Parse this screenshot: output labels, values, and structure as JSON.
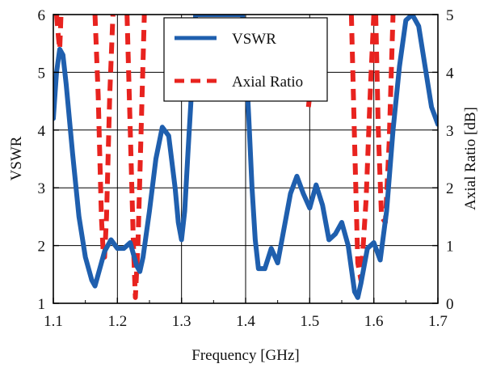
{
  "chart_data": {
    "type": "line",
    "xlabel": "Frequency [GHz]",
    "ylabel": "VSWR",
    "y2label": "Axial Ratio [dB]",
    "xlim": [
      1.1,
      1.7
    ],
    "ylim": [
      1,
      6
    ],
    "y2lim": [
      0,
      5
    ],
    "x_ticks": [
      "1.1",
      "1.2",
      "1.3",
      "1.4",
      "1.5",
      "1.6",
      "1.7"
    ],
    "y_ticks": [
      "1",
      "2",
      "3",
      "4",
      "5",
      "6"
    ],
    "y2_ticks": [
      "0",
      "1",
      "2",
      "3",
      "4",
      "5"
    ],
    "grid": true,
    "legend_position": "top-center",
    "series": [
      {
        "name": "VSWR",
        "axis": "left",
        "color": "#1f5fae",
        "style": "solid",
        "x": [
          1.1,
          1.105,
          1.11,
          1.115,
          1.12,
          1.13,
          1.14,
          1.15,
          1.16,
          1.165,
          1.17,
          1.18,
          1.19,
          1.2,
          1.21,
          1.22,
          1.23,
          1.235,
          1.24,
          1.25,
          1.26,
          1.27,
          1.28,
          1.29,
          1.295,
          1.3,
          1.305,
          1.31,
          1.32,
          1.322,
          1.395,
          1.4,
          1.405,
          1.41,
          1.415,
          1.42,
          1.43,
          1.44,
          1.45,
          1.46,
          1.47,
          1.48,
          1.49,
          1.5,
          1.51,
          1.52,
          1.53,
          1.54,
          1.55,
          1.56,
          1.565,
          1.57,
          1.575,
          1.58,
          1.59,
          1.6,
          1.61,
          1.62,
          1.63,
          1.64,
          1.65,
          1.66,
          1.67,
          1.68,
          1.69,
          1.7
        ],
        "y": [
          4.2,
          5.0,
          5.4,
          5.3,
          4.8,
          3.6,
          2.5,
          1.8,
          1.4,
          1.3,
          1.5,
          1.9,
          2.1,
          1.95,
          1.95,
          2.05,
          1.65,
          1.55,
          1.8,
          2.6,
          3.5,
          4.05,
          3.9,
          3.0,
          2.4,
          2.1,
          2.6,
          3.6,
          5.5,
          6.0,
          6.0,
          5.3,
          4.2,
          3.0,
          2.1,
          1.6,
          1.6,
          1.95,
          1.7,
          2.3,
          2.9,
          3.2,
          2.9,
          2.65,
          3.05,
          2.7,
          2.1,
          2.2,
          2.4,
          2.0,
          1.6,
          1.2,
          1.1,
          1.35,
          1.95,
          2.05,
          1.75,
          2.6,
          4.0,
          5.1,
          5.9,
          6.0,
          5.8,
          5.1,
          4.4,
          4.1
        ]
      },
      {
        "name": "Axial Ratio",
        "axis": "right",
        "color": "#e8231f",
        "style": "dashed",
        "segments": [
          {
            "x": [
              1.105,
              1.108,
              1.11,
              1.112
            ],
            "y": [
              5.0,
              4.6,
              4.4,
              5.0
            ]
          },
          {
            "x": [
              1.165,
              1.17,
              1.175,
              1.178,
              1.18,
              1.183,
              1.188,
              1.193
            ],
            "y": [
              5.0,
              3.6,
              1.5,
              0.85,
              0.8,
              1.5,
              3.6,
              5.0
            ]
          },
          {
            "x": [
              1.215,
              1.22,
              1.225,
              1.228,
              1.232,
              1.237,
              1.242
            ],
            "y": [
              5.0,
              3.0,
              1.0,
              0.1,
              1.0,
              3.0,
              5.0
            ]
          },
          {
            "x": [
              1.498,
              1.5,
              1.504
            ],
            "y": [
              3.4,
              3.6,
              5.0
            ]
          },
          {
            "x": [
              1.565,
              1.57,
              1.575,
              1.58,
              1.588,
              1.595,
              1.6
            ],
            "y": [
              5.0,
              2.8,
              0.7,
              0.4,
              1.8,
              3.8,
              5.0
            ]
          },
          {
            "x": [
              1.603,
              1.607,
              1.612,
              1.618,
              1.624,
              1.63
            ],
            "y": [
              5.0,
              3.0,
              1.5,
              1.4,
              2.8,
              5.0
            ]
          }
        ]
      }
    ]
  }
}
